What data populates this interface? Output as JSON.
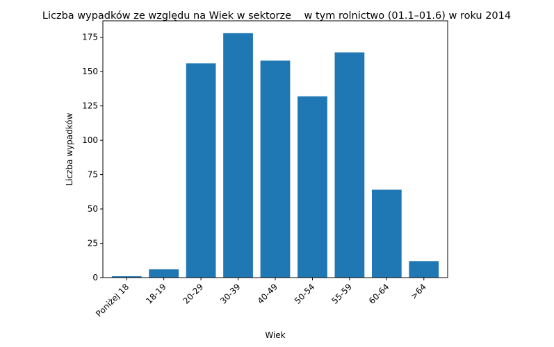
{
  "chart_data": {
    "type": "bar",
    "title": "Liczba wypadków ze względu na Wiek w sektorze    w tym rolnictwo (01.1–01.6) w roku 2014",
    "xlabel": "Wiek",
    "ylabel": "Liczba wypadków",
    "categories": [
      "Poniżej 18",
      "18-19",
      "20-29",
      "30-39",
      "40-49",
      "50-54",
      "55-59",
      "60-64",
      ">64"
    ],
    "values": [
      1,
      6,
      156,
      178,
      158,
      132,
      164,
      64,
      12
    ],
    "ylim": [
      0,
      187
    ],
    "yticks": [
      0,
      25,
      50,
      75,
      100,
      125,
      150,
      175
    ],
    "bar_color": "#1f77b4",
    "grid": false,
    "legend": "none"
  }
}
